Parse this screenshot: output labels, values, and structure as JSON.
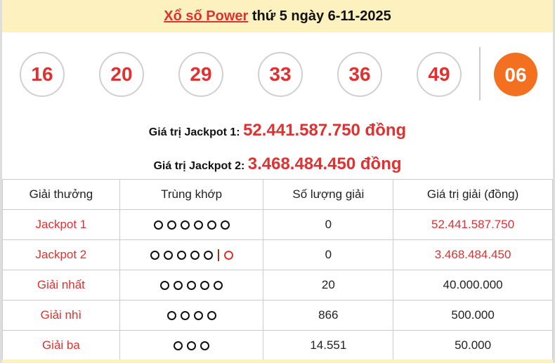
{
  "header": {
    "link": "Xổ số Power",
    "rest": " thứ 5 ngày 6-11-2025"
  },
  "balls": [
    "16",
    "20",
    "29",
    "33",
    "36",
    "49"
  ],
  "special_ball": "06",
  "jackpot1": {
    "label": "Giá trị Jackpot 1: ",
    "value": "52.441.587.750 đồng"
  },
  "jackpot2": {
    "label": "Giá trị Jackpot 2: ",
    "value": "3.468.484.450 đồng"
  },
  "table": {
    "headers": [
      "Giải thưởng",
      "Trùng khớp",
      "Số lượng giải",
      "Giá trị giải (đồng)"
    ],
    "rows": [
      {
        "prize": "Jackpot 1",
        "match": 6,
        "special": false,
        "count": "0",
        "value": "52.441.587.750",
        "value_red": true
      },
      {
        "prize": "Jackpot 2",
        "match": 5,
        "special": true,
        "count": "0",
        "value": "3.468.484.450",
        "value_red": true
      },
      {
        "prize": "Giải nhất",
        "match": 5,
        "special": false,
        "count": "20",
        "value": "40.000.000",
        "value_red": false
      },
      {
        "prize": "Giải nhì",
        "match": 4,
        "special": false,
        "count": "866",
        "value": "500.000",
        "value_red": false
      },
      {
        "prize": "Giải ba",
        "match": 3,
        "special": false,
        "count": "14.551",
        "value": "50.000",
        "value_red": false
      }
    ]
  },
  "colors": {
    "accent": "#e03131",
    "special": "#f37021",
    "header_bg": "#fdf1c0"
  }
}
